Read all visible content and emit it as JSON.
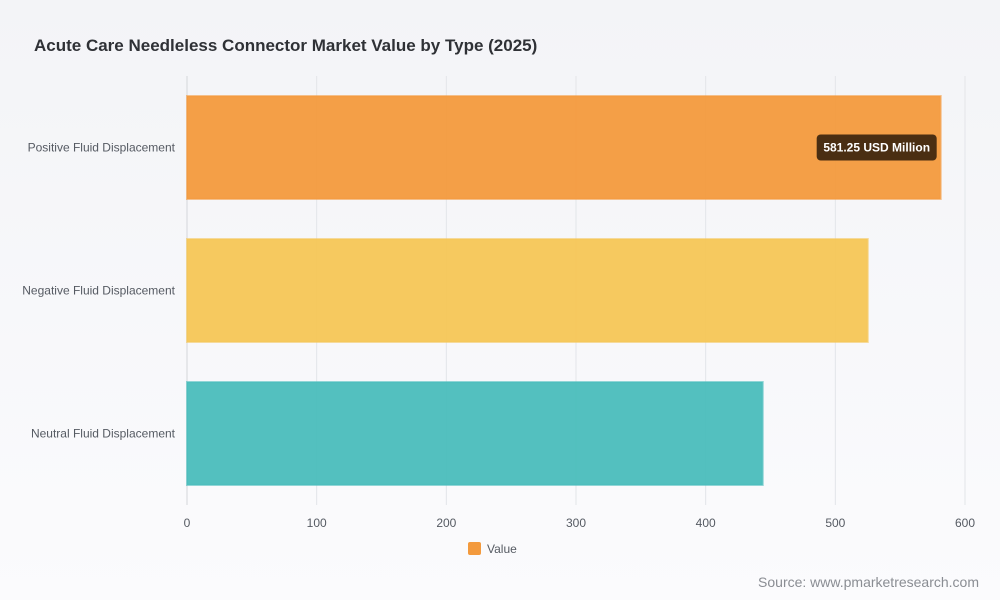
{
  "title": "Acute Care Needleless Connector Market Value by Type (2025)",
  "source": "Source: www.pmarketresearch.com",
  "chart_data": {
    "type": "bar",
    "orientation": "horizontal",
    "categories": [
      "Positive Fluid Displacement",
      "Negative Fluid Displacement",
      "Neutral Fluid Displacement"
    ],
    "series": [
      {
        "name": "Value",
        "values": [
          581.25,
          525,
          444
        ]
      }
    ],
    "colors": [
      "#f39a3d",
      "#f5c656",
      "#4abdbc"
    ],
    "xlim": [
      0,
      600
    ],
    "xticks": [
      0,
      100,
      200,
      300,
      400,
      500,
      600
    ],
    "grid": true,
    "legend_position": "bottom",
    "legend": [
      {
        "label": "Value",
        "color": "#f39a3d"
      }
    ],
    "annotations": [
      {
        "category_index": 0,
        "text": "581.25 USD Million"
      }
    ]
  }
}
